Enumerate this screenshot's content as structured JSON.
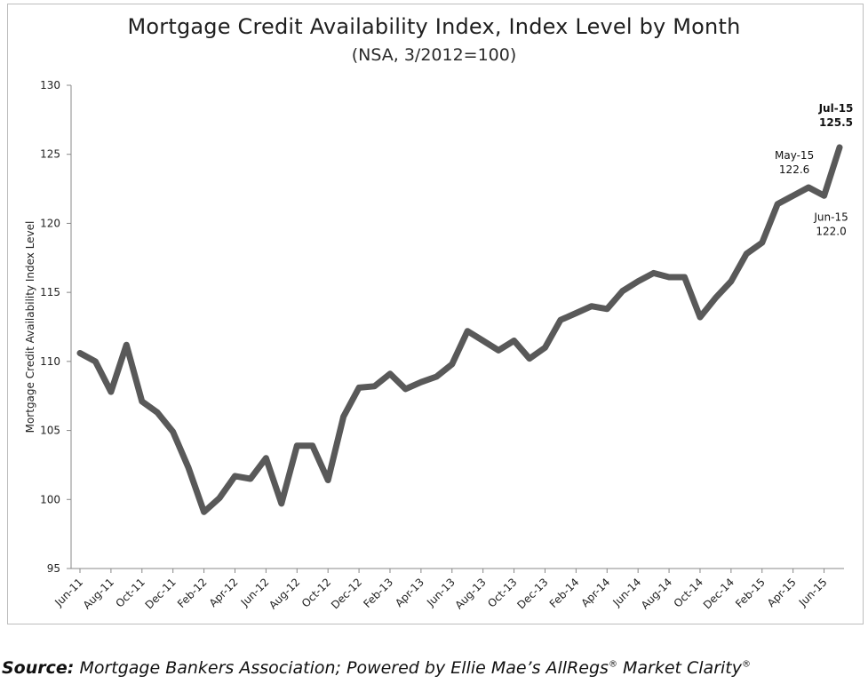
{
  "chart_data": {
    "type": "line",
    "title": "Mortgage Credit Availability Index, Index Level by Month",
    "subtitle": "(NSA, 3/2012=100)",
    "ylabel": "Mortgage Credit Availability Index Level",
    "xlabel": "",
    "ylim": [
      95,
      130
    ],
    "yticks": [
      "95",
      "100",
      "105",
      "110",
      "115",
      "120",
      "125",
      "130"
    ],
    "line_color": "#595959",
    "grid": false,
    "x": [
      "Jun-11",
      "Jul-11",
      "Aug-11",
      "Sep-11",
      "Oct-11",
      "Nov-11",
      "Dec-11",
      "Jan-12",
      "Feb-12",
      "Mar-12",
      "Apr-12",
      "May-12",
      "Jun-12",
      "Jul-12",
      "Aug-12",
      "Sep-12",
      "Oct-12",
      "Nov-12",
      "Dec-12",
      "Jan-13",
      "Feb-13",
      "Mar-13",
      "Apr-13",
      "May-13",
      "Jun-13",
      "Jul-13",
      "Aug-13",
      "Sep-13",
      "Oct-13",
      "Nov-13",
      "Dec-13",
      "Jan-14",
      "Feb-14",
      "Mar-14",
      "Apr-14",
      "May-14",
      "Jun-14",
      "Jul-14",
      "Aug-14",
      "Sep-14",
      "Oct-14",
      "Nov-14",
      "Dec-14",
      "Jan-15",
      "Feb-15",
      "Mar-15",
      "Apr-15",
      "May-15",
      "Jun-15",
      "Jul-15"
    ],
    "xtick_labels": [
      "Jun-11",
      "Aug-11",
      "Oct-11",
      "Dec-11",
      "Feb-12",
      "Apr-12",
      "Jun-12",
      "Aug-12",
      "Oct-12",
      "Dec-12",
      "Feb-13",
      "Apr-13",
      "Jun-13",
      "Aug-13",
      "Oct-13",
      "Dec-13",
      "Feb-14",
      "Apr-14",
      "Jun-14",
      "Aug-14",
      "Oct-14",
      "Dec-14",
      "Feb-15",
      "Apr-15",
      "Jun-15"
    ],
    "series": [
      {
        "values": [
          110.6,
          110.0,
          107.8,
          111.2,
          107.1,
          106.3,
          104.9,
          102.3,
          99.1,
          100.1,
          101.7,
          101.5,
          103.0,
          99.7,
          103.9,
          103.9,
          101.4,
          106.0,
          108.1,
          108.2,
          109.1,
          108.0,
          108.5,
          108.9,
          109.8,
          112.2,
          111.5,
          110.8,
          111.5,
          110.2,
          111.0,
          113.0,
          113.5,
          114.0,
          113.8,
          115.1,
          115.8,
          116.4,
          116.1,
          116.1,
          113.2,
          114.6,
          115.8,
          117.8,
          118.6,
          121.4,
          122.0,
          122.6,
          122.0,
          125.5
        ]
      }
    ],
    "annotations": [
      {
        "month": "Jul-15",
        "label": "Jul-15",
        "value": "125.5"
      },
      {
        "month": "May-15",
        "label": "May-15",
        "value": "122.6"
      },
      {
        "month": "Jun-15",
        "label": "Jun-15",
        "value": "122.0"
      }
    ]
  },
  "source": {
    "label": "Source:",
    "text": "Mortgage Bankers Association; Powered by Ellie Mae’s AllRegs",
    "reg1": "®",
    "text2": "Market Clarity",
    "reg2": "®"
  }
}
